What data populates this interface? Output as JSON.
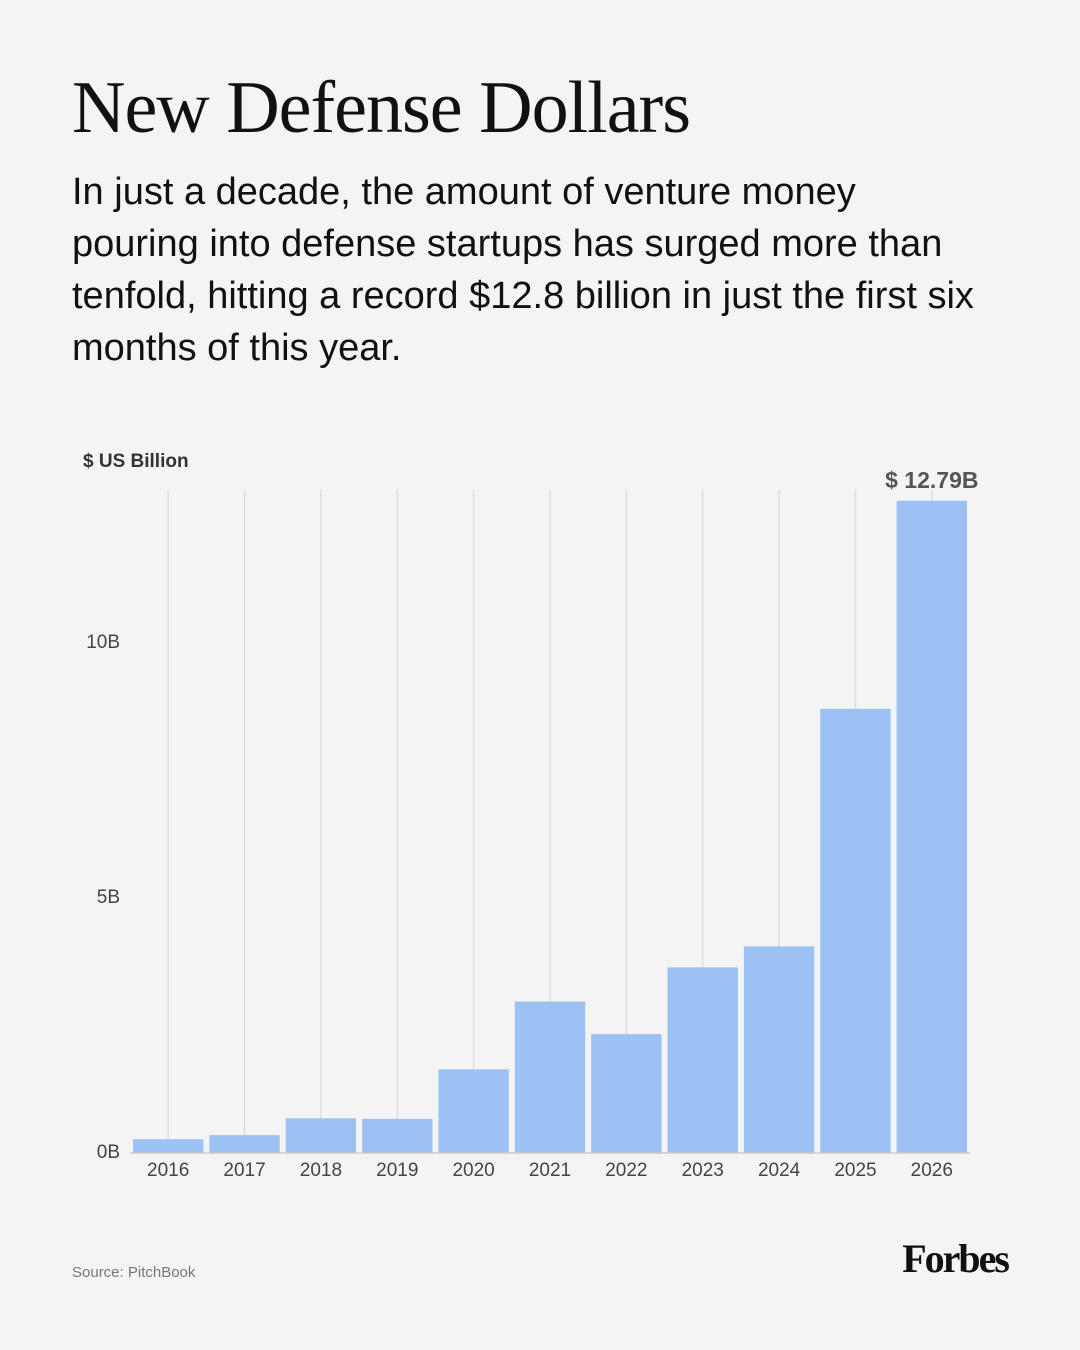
{
  "chart_data": {
    "type": "bar",
    "title": "New Defense Dollars",
    "subtitle": "In just a decade, the amount of venture money pouring into defense startups has surged more than tenfold, hitting a record $12.8 billion in just the first six months of this year.",
    "y_label": "$ US Billion",
    "categories": [
      "2016",
      "2017",
      "2018",
      "2019",
      "2020",
      "2021",
      "2022",
      "2023",
      "2024",
      "2025",
      "2026"
    ],
    "values": [
      0.27,
      0.35,
      0.68,
      0.67,
      1.64,
      2.97,
      2.33,
      3.64,
      4.05,
      8.71,
      12.79
    ],
    "value_labels": [
      null,
      null,
      null,
      null,
      null,
      null,
      null,
      null,
      null,
      null,
      "$ 12.79B"
    ],
    "color": "#9dc1f2",
    "ylim": [
      0,
      13
    ],
    "yticks": [
      {
        "value": 0,
        "label": "0B"
      },
      {
        "value": 5,
        "label": "5B"
      },
      {
        "value": 10,
        "label": "10B"
      }
    ],
    "grid": "x",
    "source": "Source: PitchBook",
    "logo": "Forbes"
  }
}
